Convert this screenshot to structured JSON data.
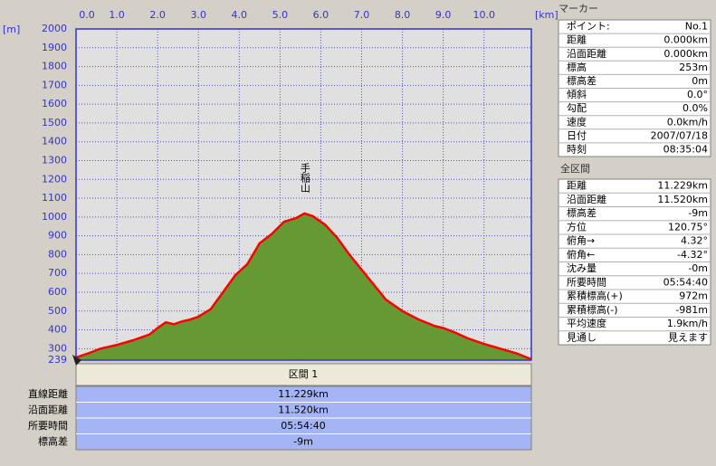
{
  "chart_data": {
    "type": "area",
    "x_unit": "[km]",
    "y_unit": "[m]",
    "color": "#669933",
    "line_color": "#ff0000",
    "grid": true,
    "x": [
      0,
      0.3,
      0.6,
      1.0,
      1.4,
      1.8,
      2.0,
      2.2,
      2.4,
      2.6,
      2.8,
      3.0,
      3.3,
      3.6,
      3.9,
      4.2,
      4.5,
      4.8,
      5.1,
      5.4,
      5.6,
      5.8,
      6.1,
      6.4,
      6.7,
      7.0,
      7.3,
      7.6,
      8.0,
      8.4,
      8.8,
      9.0,
      9.3,
      9.6,
      10.0,
      10.4,
      10.8,
      11.16
    ],
    "values": [
      253,
      275,
      300,
      320,
      345,
      375,
      410,
      440,
      430,
      445,
      455,
      470,
      510,
      600,
      690,
      750,
      860,
      910,
      975,
      995,
      1019,
      1005,
      960,
      890,
      800,
      720,
      640,
      560,
      500,
      455,
      420,
      410,
      385,
      355,
      325,
      300,
      275,
      244
    ],
    "annotations": [
      {
        "text": "手稲山",
        "x": 5.6
      }
    ],
    "xlim": [
      0,
      11.16
    ],
    "ylim": [
      239,
      2000
    ],
    "xticks": [
      {
        "value": 0,
        "label": "0.0"
      },
      {
        "value": 1,
        "label": "1.0"
      },
      {
        "value": 2,
        "label": "2.0"
      },
      {
        "value": 3,
        "label": "3.0"
      },
      {
        "value": 4,
        "label": "4.0"
      },
      {
        "value": 5,
        "label": "5.0"
      },
      {
        "value": 6,
        "label": "6.0"
      },
      {
        "value": 7,
        "label": "7.0"
      },
      {
        "value": 8,
        "label": "8.0"
      },
      {
        "value": 9,
        "label": "9.0"
      },
      {
        "value": 10,
        "label": "10.0"
      }
    ],
    "yticks": [
      239,
      300,
      400,
      500,
      600,
      700,
      800,
      900,
      1000,
      1100,
      1200,
      1300,
      1400,
      1500,
      1600,
      1700,
      1800,
      1900,
      2000
    ]
  },
  "marker_panel": {
    "title": "マーカー",
    "rows": [
      [
        "ポイント:",
        "No.1"
      ],
      [
        "距離",
        "0.000km"
      ],
      [
        "沿面距離",
        "0.000km"
      ],
      [
        "標高",
        "253m"
      ],
      [
        "標高差",
        "0m"
      ],
      [
        "傾斜",
        "0.0°"
      ],
      [
        "勾配",
        "0.0%"
      ],
      [
        "速度",
        "0.0km/h"
      ],
      [
        "日付",
        "2007/07/18"
      ],
      [
        "時刻",
        "08:35:04"
      ]
    ]
  },
  "section_panel": {
    "title": "全区間",
    "rows": [
      [
        "距離",
        "11.229km"
      ],
      [
        "沿面距離",
        "11.520km"
      ],
      [
        "標高差",
        "-9m"
      ],
      [
        "方位",
        "120.75°"
      ],
      [
        "俯角→",
        "4.32°"
      ],
      [
        "俯角←",
        "-4.32°"
      ],
      [
        "沈み量",
        "-0m"
      ],
      [
        "所要時間",
        "05:54:40"
      ],
      [
        "累積標高(+)",
        "972m"
      ],
      [
        "累積標高(-)",
        "-981m"
      ],
      [
        "平均速度",
        "1.9km/h"
      ],
      [
        "見通し",
        "見えます"
      ]
    ]
  },
  "summary": {
    "header": "区間 1",
    "rows": [
      [
        "直線距離",
        "11.229km"
      ],
      [
        "沿面距離",
        "11.520km"
      ],
      [
        "所要時間",
        "05:54:40"
      ],
      [
        "標高差",
        "-9m"
      ]
    ]
  }
}
